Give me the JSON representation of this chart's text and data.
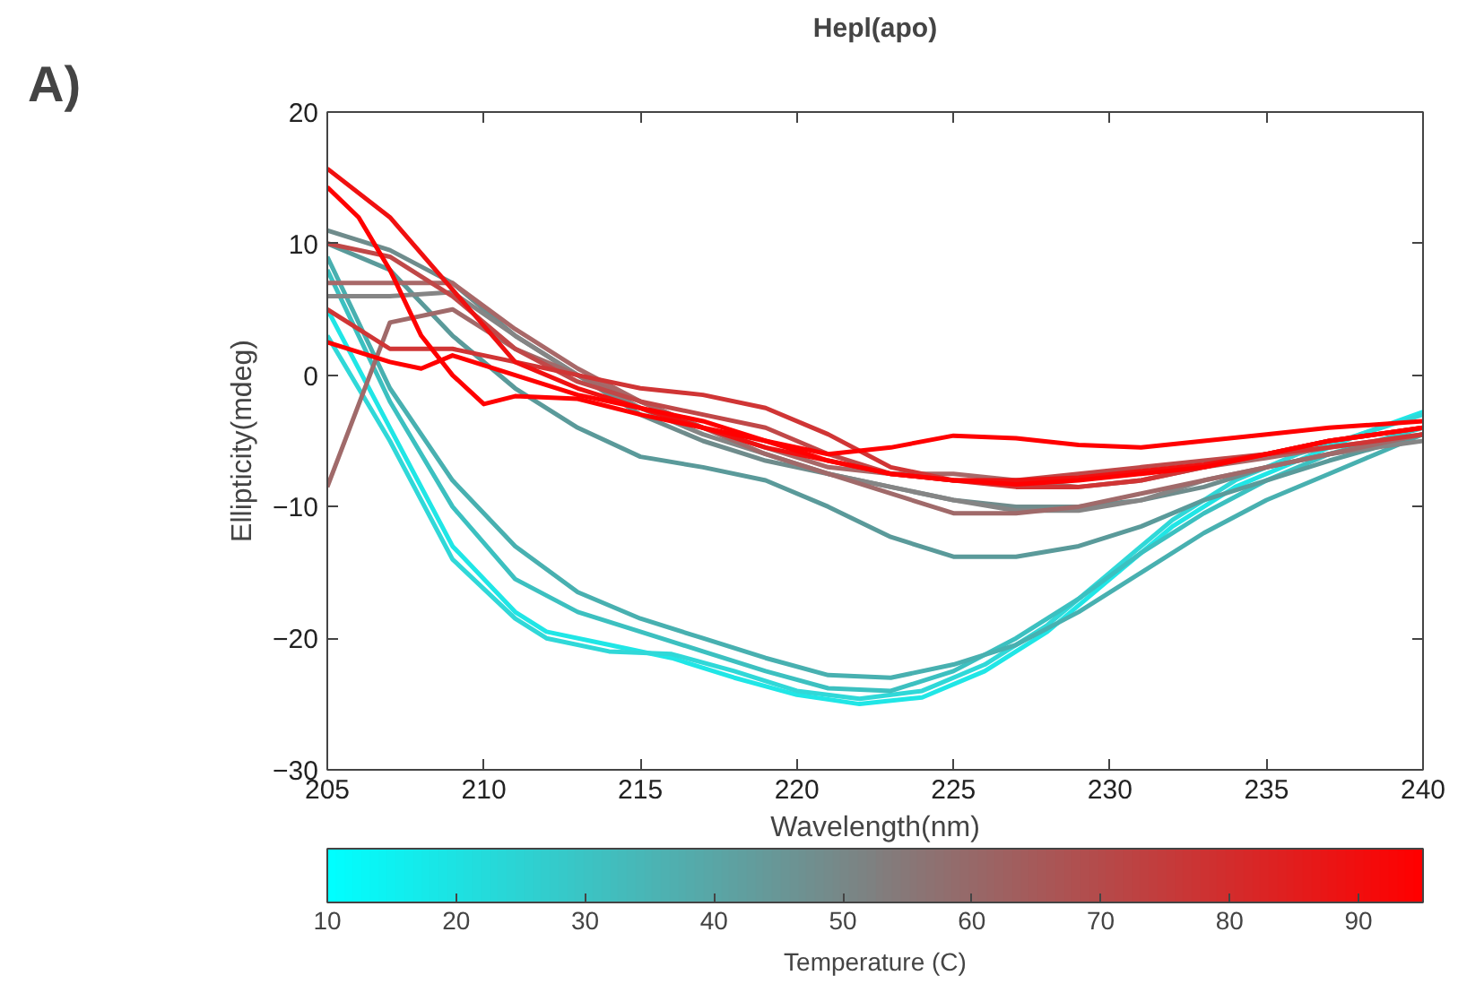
{
  "chart_data": {
    "type": "line",
    "title": "Hepl(apo)",
    "xlabel": "Wavelength(nm)",
    "ylabel": "Ellipticity(mdeg)",
    "clabel": "Temperature (C)",
    "annotations": [
      "A)"
    ],
    "xlim": [
      205,
      240
    ],
    "ylim": [
      -30,
      20
    ],
    "xticks": [
      205,
      210,
      215,
      220,
      225,
      230,
      235,
      240
    ],
    "yticks": [
      -30,
      -20,
      -10,
      0,
      10,
      20
    ],
    "clim": [
      10,
      95
    ],
    "cticks": [
      10,
      20,
      30,
      40,
      50,
      60,
      70,
      80,
      90
    ],
    "grid": false,
    "line_style": "solid",
    "series": [
      {
        "color": "#20e6e6",
        "x": [
          205,
          207,
          209,
          211,
          212,
          214,
          216,
          218,
          220,
          222,
          224,
          226,
          228,
          230,
          232,
          234,
          236,
          238,
          240
        ],
        "values": [
          5,
          -4,
          -13,
          -18,
          -19.5,
          -20.5,
          -21.5,
          -23,
          -24.3,
          -25,
          -24.5,
          -22.5,
          -19.5,
          -15.5,
          -11.5,
          -8.5,
          -6.5,
          -4.5,
          -2.8
        ]
      },
      {
        "color": "#30d8d8",
        "x": [
          205,
          207,
          209,
          211,
          212,
          214,
          216,
          218,
          220,
          222,
          224,
          226,
          228,
          230,
          232,
          234,
          236,
          238,
          240
        ],
        "values": [
          3,
          -5,
          -14,
          -18.5,
          -20,
          -21,
          -21.2,
          -22.5,
          -24,
          -24.6,
          -24,
          -22,
          -19,
          -15,
          -11,
          -8,
          -6,
          -4.5,
          -3
        ]
      },
      {
        "color": "#3cc0c0",
        "x": [
          205,
          207,
          209,
          211,
          213,
          215,
          217,
          219,
          221,
          223,
          225,
          227,
          229,
          231,
          233,
          235,
          237,
          240
        ],
        "values": [
          8,
          -2,
          -10,
          -15.5,
          -18,
          -19.5,
          -21,
          -22.5,
          -23.8,
          -24,
          -22.5,
          -20,
          -17,
          -13.5,
          -10.5,
          -8,
          -6,
          -4
        ]
      },
      {
        "color": "#48b0b0",
        "x": [
          205,
          207,
          209,
          211,
          213,
          215,
          217,
          219,
          221,
          223,
          225,
          227,
          229,
          231,
          233,
          235,
          237,
          240
        ],
        "values": [
          9,
          -1,
          -8,
          -13,
          -16.5,
          -18.5,
          -20,
          -21.5,
          -22.8,
          -23,
          -22,
          -20.5,
          -18,
          -15,
          -12,
          -9.5,
          -7.5,
          -4.5
        ]
      },
      {
        "color": "#5a9a9a",
        "x": [
          205,
          207,
          209,
          211,
          213,
          215,
          217,
          219,
          221,
          223,
          225,
          227,
          229,
          231,
          233,
          235,
          237,
          240
        ],
        "values": [
          10,
          8,
          3,
          -1,
          -4,
          -6.2,
          -7,
          -8,
          -10,
          -12.3,
          -13.8,
          -13.8,
          -13,
          -11.5,
          -9.5,
          -8,
          -6.5,
          -4.5
        ]
      },
      {
        "color": "#6f8c8c",
        "x": [
          205,
          207,
          209,
          211,
          213,
          215,
          217,
          219,
          221,
          223,
          225,
          227,
          229,
          231,
          233,
          235,
          237,
          240
        ],
        "values": [
          11,
          9.5,
          7,
          3,
          0,
          -3,
          -5,
          -6.5,
          -7.5,
          -8.5,
          -9.5,
          -10,
          -10,
          -9.5,
          -8.5,
          -7,
          -6,
          -4.5
        ]
      },
      {
        "color": "#858585",
        "x": [
          205,
          207,
          209,
          211,
          213,
          215,
          217,
          219,
          221,
          223,
          225,
          227,
          229,
          231,
          233,
          235,
          237,
          240
        ],
        "values": [
          6,
          6,
          6.3,
          3,
          0,
          -2.5,
          -4.5,
          -6,
          -7.5,
          -8.5,
          -9.5,
          -10.3,
          -10.3,
          -9.5,
          -8,
          -7,
          -6,
          -5
        ]
      },
      {
        "color": "#a06a6a",
        "x": [
          205,
          207,
          209,
          211,
          213,
          215,
          217,
          219,
          221,
          223,
          225,
          227,
          229,
          231,
          233,
          235,
          237,
          240
        ],
        "values": [
          -8.5,
          4,
          5,
          2,
          0,
          -2,
          -4,
          -6,
          -7.5,
          -9,
          -10.5,
          -10.5,
          -10,
          -9,
          -8,
          -7,
          -6,
          -4.5
        ]
      },
      {
        "color": "#a86868",
        "x": [
          205,
          207,
          209,
          211,
          213,
          215,
          217,
          219,
          221,
          223,
          225,
          227,
          229,
          231,
          233,
          235,
          237,
          240
        ],
        "values": [
          7,
          7,
          7,
          3.5,
          0.5,
          -2,
          -4,
          -5.5,
          -7,
          -7.5,
          -7.5,
          -8,
          -8.5,
          -8,
          -7,
          -6.3,
          -5.5,
          -4.5
        ]
      },
      {
        "color": "#c04848",
        "x": [
          205,
          207,
          209,
          211,
          213,
          215,
          217,
          219,
          221,
          223,
          225,
          227,
          229,
          231,
          233,
          235,
          237,
          240
        ],
        "values": [
          10,
          9,
          6,
          2,
          -0.5,
          -2,
          -3,
          -4,
          -6,
          -7.5,
          -8,
          -8,
          -7.5,
          -7,
          -6.5,
          -6,
          -5,
          -4
        ]
      },
      {
        "color": "#d03535",
        "x": [
          205,
          207,
          209,
          211,
          213,
          215,
          217,
          219,
          221,
          223,
          225,
          227,
          229,
          231,
          233,
          235,
          237,
          240
        ],
        "values": [
          5,
          2,
          2,
          1,
          0,
          -1,
          -1.5,
          -2.5,
          -4.5,
          -7,
          -8,
          -8.5,
          -8.5,
          -8,
          -7,
          -6,
          -5.5,
          -4.5
        ]
      },
      {
        "color": "#f01010",
        "x": [
          205,
          207,
          209,
          211,
          213,
          215,
          217,
          219,
          221,
          223,
          225,
          227,
          229,
          231,
          233,
          235,
          237,
          240
        ],
        "values": [
          15.7,
          12,
          6.5,
          1,
          -1,
          -2.5,
          -4,
          -5.5,
          -6.5,
          -7.5,
          -8,
          -8,
          -7.8,
          -7.3,
          -6.8,
          -6,
          -5,
          -4
        ]
      },
      {
        "color": "#ff0000",
        "x": [
          205,
          206,
          207,
          208,
          209,
          210,
          211,
          213,
          215,
          217,
          219,
          221,
          223,
          225,
          227,
          229,
          231,
          233,
          235,
          237,
          240
        ],
        "values": [
          14.3,
          12,
          8,
          3,
          0,
          -2.2,
          -1.6,
          -1.8,
          -3,
          -4,
          -5,
          -6.5,
          -7.5,
          -8,
          -8.3,
          -8,
          -7.5,
          -7,
          -6,
          -5,
          -4
        ]
      },
      {
        "color": "#ff0000",
        "x": [
          205,
          207,
          208,
          209,
          211,
          213,
          215,
          217,
          219,
          221,
          223,
          225,
          227,
          229,
          231,
          233,
          235,
          237,
          240
        ],
        "values": [
          2.5,
          1,
          0.5,
          1.5,
          0,
          -1.5,
          -2.5,
          -3.5,
          -5,
          -6,
          -5.5,
          -4.6,
          -4.8,
          -5.3,
          -5.5,
          -5,
          -4.5,
          -4,
          -3.5
        ]
      }
    ]
  }
}
